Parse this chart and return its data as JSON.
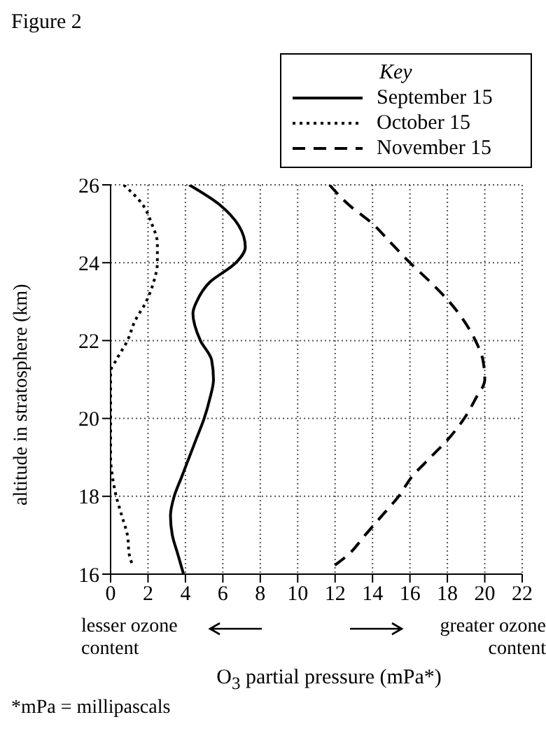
{
  "chart_data": {
    "type": "line",
    "title": "Figure 2",
    "legend_title": "Key",
    "xlabel": "O$_{3}$ partial pressure (mPa*)",
    "ylabel": "altitude in stratosphere (km)",
    "annotations": [
      "lesser ozone content",
      "greater ozone content",
      "*mPa = millipascals"
    ],
    "xlim": [
      0,
      22
    ],
    "xticks": [
      0,
      2,
      4,
      6,
      8,
      10,
      12,
      14,
      16,
      18,
      20,
      22
    ],
    "ylim": [
      16,
      26
    ],
    "yticks": [
      16,
      18,
      20,
      22,
      24,
      26
    ],
    "grid": true,
    "legend": "top right",
    "marker": "none",
    "series": [
      {
        "name": "September 15",
        "color": "#000000",
        "line_style": "solid",
        "x": [
          4.2,
          5.8,
          7.2,
          6.7,
          5.3,
          4.6,
          4.4,
          4.8,
          5.4,
          5.5,
          5.3,
          5.0,
          4.6,
          4.2,
          3.8,
          3.4,
          3.2,
          3.3,
          3.6,
          3.9
        ],
        "values": [
          26,
          25.5,
          24.4,
          24,
          23.5,
          23,
          22.7,
          22,
          21.5,
          21,
          20.5,
          20,
          19.5,
          19,
          18.5,
          18,
          17.5,
          17,
          16.5,
          16
        ]
      },
      {
        "name": "October 15",
        "color": "#000000",
        "line_style": "dotted",
        "x": [
          0.7,
          1.7,
          2.2,
          2.5,
          2.5,
          2.3,
          1.9,
          1.3,
          0.9,
          0.3,
          0,
          0,
          0,
          0,
          0.1,
          0.3,
          0.6,
          0.9,
          1.0,
          1.2
        ],
        "values": [
          26,
          25.5,
          25,
          24.5,
          24,
          23.5,
          23,
          22.5,
          22,
          21.5,
          21.2,
          20.5,
          20,
          19,
          18.5,
          18,
          17.5,
          17,
          16.5,
          16.2
        ]
      },
      {
        "name": "November 15",
        "color": "#000000",
        "line_style": "dashed",
        "x": [
          11.7,
          12.7,
          14.0,
          15.0,
          16.0,
          17.1,
          18.1,
          18.9,
          19.5,
          19.9,
          20.0,
          19.5,
          18.9,
          18.1,
          17.1,
          16.1,
          15.4,
          14.5,
          13.6,
          12.7,
          11.9
        ],
        "values": [
          26,
          25.5,
          25,
          24.5,
          24,
          23.5,
          23,
          22.5,
          22,
          21.5,
          21,
          20.5,
          20,
          19.5,
          19,
          18.5,
          18,
          17.5,
          17,
          16.5,
          16.2
        ]
      }
    ]
  }
}
